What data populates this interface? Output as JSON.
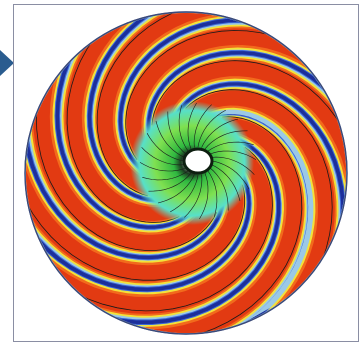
{
  "figure": {
    "arrow_icon": "triangle-right-icon",
    "colors": {
      "arrow": "#2a5c8f",
      "frame": "#8a8ea3",
      "rim_light": "#9bc9e6",
      "rim_dark": "#3a80c8",
      "blade_blue": "#1c2f9a",
      "blade_edge": "#3d68d8",
      "passage_red": "#e23a12",
      "passage_orange": "#f26a1c",
      "passage_yellow": "#f2e23a",
      "hub_green": "#3fd24a",
      "hub_cyan": "#57e0c8",
      "eye_white": "#ffffff",
      "streamline": "#1a1a1a"
    }
  }
}
